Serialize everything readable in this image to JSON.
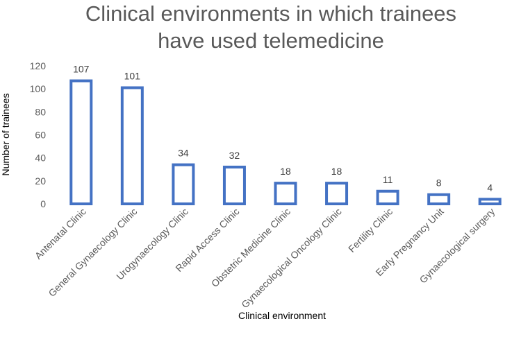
{
  "colors": {
    "bar_outline": "#4472c4",
    "title_text": "#595959",
    "label_text": "#595959",
    "data_label_text": "#404040",
    "background": "#ffffff"
  },
  "chart_data": {
    "type": "bar",
    "title_lines": [
      "Clinical environments in which trainees",
      "have used telemedicine"
    ],
    "xlabel": "Clinical environment",
    "ylabel": "Number of trainees",
    "ylim": [
      0,
      120
    ],
    "yticks": [
      0,
      20,
      40,
      60,
      80,
      100,
      120
    ],
    "grid": false,
    "legend": "none",
    "categories": [
      "Antenatal Clinic",
      "General Gynaecology Clinic",
      "Urogynaecology Clinic",
      "Rapid Access Clinic",
      "Obstetric Medicine Clinic",
      "Gynaecological Oncology Clinic",
      "Fertility Clinic",
      "Early Pregnancy Unit",
      "Gynaecological surgery"
    ],
    "values": [
      107,
      101,
      34,
      32,
      18,
      18,
      11,
      8,
      4
    ],
    "data_labels": [
      "107",
      "101",
      "34",
      "32",
      "18",
      "18",
      "11",
      "8",
      "4"
    ]
  }
}
